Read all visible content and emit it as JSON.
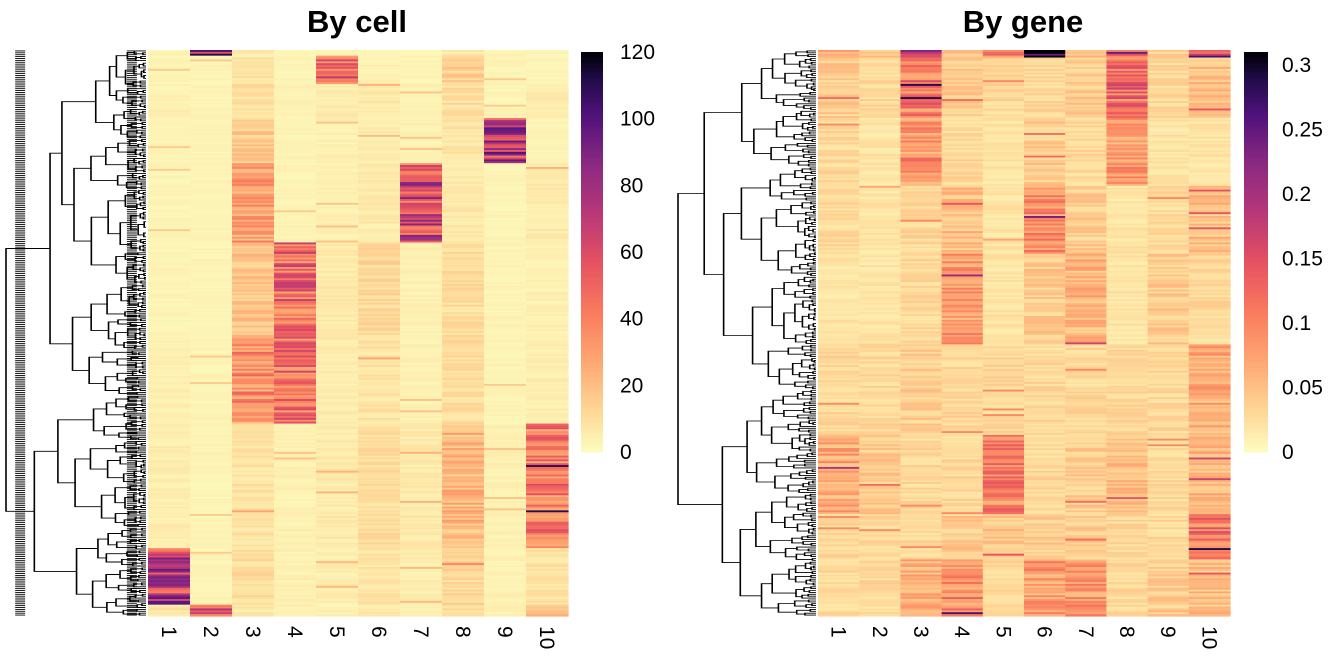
{
  "chart_data": [
    {
      "type": "heatmap",
      "title": "By cell",
      "columns": [
        "1",
        "2",
        "3",
        "4",
        "5",
        "6",
        "7",
        "8",
        "9",
        "10"
      ],
      "dendrogram": "rows",
      "colorscale": "magma (reversed)",
      "colorbar": {
        "min": 0,
        "max": 120,
        "ticks": [
          "0",
          "20",
          "40",
          "60",
          "80",
          "100",
          "120"
        ]
      },
      "row_blocks": [
        {
          "rows": [
            0.0,
            0.01
          ],
          "values": [
            3,
            85,
            6,
            3,
            4,
            3,
            2,
            6,
            3,
            3
          ]
        },
        {
          "rows": [
            0.01,
            0.06
          ],
          "values": [
            3,
            3,
            8,
            3,
            50,
            4,
            3,
            14,
            3,
            3
          ]
        },
        {
          "rows": [
            0.06,
            0.12
          ],
          "values": [
            4,
            3,
            10,
            4,
            6,
            6,
            4,
            10,
            3,
            6
          ]
        },
        {
          "rows": [
            0.12,
            0.2
          ],
          "values": [
            3,
            3,
            16,
            3,
            4,
            5,
            4,
            8,
            70,
            3
          ]
        },
        {
          "rows": [
            0.2,
            0.34
          ],
          "values": [
            3,
            3,
            30,
            3,
            4,
            6,
            62,
            6,
            3,
            6
          ]
        },
        {
          "rows": [
            0.34,
            0.51
          ],
          "values": [
            3,
            3,
            18,
            48,
            6,
            12,
            4,
            10,
            3,
            4
          ]
        },
        {
          "rows": [
            0.51,
            0.66
          ],
          "values": [
            4,
            3,
            35,
            45,
            5,
            8,
            4,
            10,
            3,
            5
          ]
        },
        {
          "rows": [
            0.66,
            0.88
          ],
          "values": [
            5,
            3,
            8,
            4,
            6,
            10,
            6,
            22,
            4,
            42
          ]
        },
        {
          "rows": [
            0.88,
            0.98
          ],
          "values": [
            68,
            3,
            10,
            4,
            5,
            8,
            5,
            12,
            4,
            8
          ]
        },
        {
          "rows": [
            0.98,
            1.0
          ],
          "values": [
            8,
            55,
            6,
            4,
            4,
            6,
            4,
            10,
            4,
            22
          ]
        }
      ]
    },
    {
      "type": "heatmap",
      "title": "By gene",
      "columns": [
        "1",
        "2",
        "3",
        "4",
        "5",
        "6",
        "7",
        "8",
        "9",
        "10"
      ],
      "dendrogram": "rows",
      "colorscale": "magma (reversed)",
      "colorbar": {
        "min": 0,
        "max": 0.31,
        "ticks": [
          "0",
          "0.05",
          "0.1",
          "0.15",
          "0.2",
          "0.25",
          "0.3"
        ]
      },
      "row_blocks": [
        {
          "rows": [
            0.0,
            0.012
          ],
          "values": [
            0.06,
            0.04,
            0.18,
            0.04,
            0.12,
            0.3,
            0.05,
            0.17,
            0.04,
            0.2
          ]
        },
        {
          "rows": [
            0.012,
            0.12
          ],
          "values": [
            0.04,
            0.03,
            0.11,
            0.04,
            0.03,
            0.03,
            0.04,
            0.12,
            0.03,
            0.05
          ]
        },
        {
          "rows": [
            0.12,
            0.24
          ],
          "values": [
            0.03,
            0.02,
            0.09,
            0.03,
            0.02,
            0.04,
            0.03,
            0.08,
            0.02,
            0.02
          ]
        },
        {
          "rows": [
            0.24,
            0.36
          ],
          "values": [
            0.03,
            0.02,
            0.03,
            0.05,
            0.02,
            0.09,
            0.04,
            0.02,
            0.03,
            0.05
          ]
        },
        {
          "rows": [
            0.36,
            0.52
          ],
          "values": [
            0.02,
            0.02,
            0.03,
            0.08,
            0.02,
            0.04,
            0.06,
            0.02,
            0.04,
            0.03
          ]
        },
        {
          "rows": [
            0.52,
            0.68
          ],
          "values": [
            0.03,
            0.03,
            0.04,
            0.03,
            0.03,
            0.03,
            0.03,
            0.03,
            0.03,
            0.07
          ]
        },
        {
          "rows": [
            0.68,
            0.82
          ],
          "values": [
            0.07,
            0.04,
            0.03,
            0.03,
            0.1,
            0.03,
            0.04,
            0.05,
            0.03,
            0.06
          ]
        },
        {
          "rows": [
            0.82,
            0.9
          ],
          "values": [
            0.03,
            0.03,
            0.03,
            0.04,
            0.05,
            0.04,
            0.04,
            0.03,
            0.03,
            0.11
          ]
        },
        {
          "rows": [
            0.9,
            1.0
          ],
          "values": [
            0.03,
            0.03,
            0.06,
            0.1,
            0.03,
            0.08,
            0.08,
            0.03,
            0.04,
            0.05
          ]
        }
      ]
    }
  ]
}
